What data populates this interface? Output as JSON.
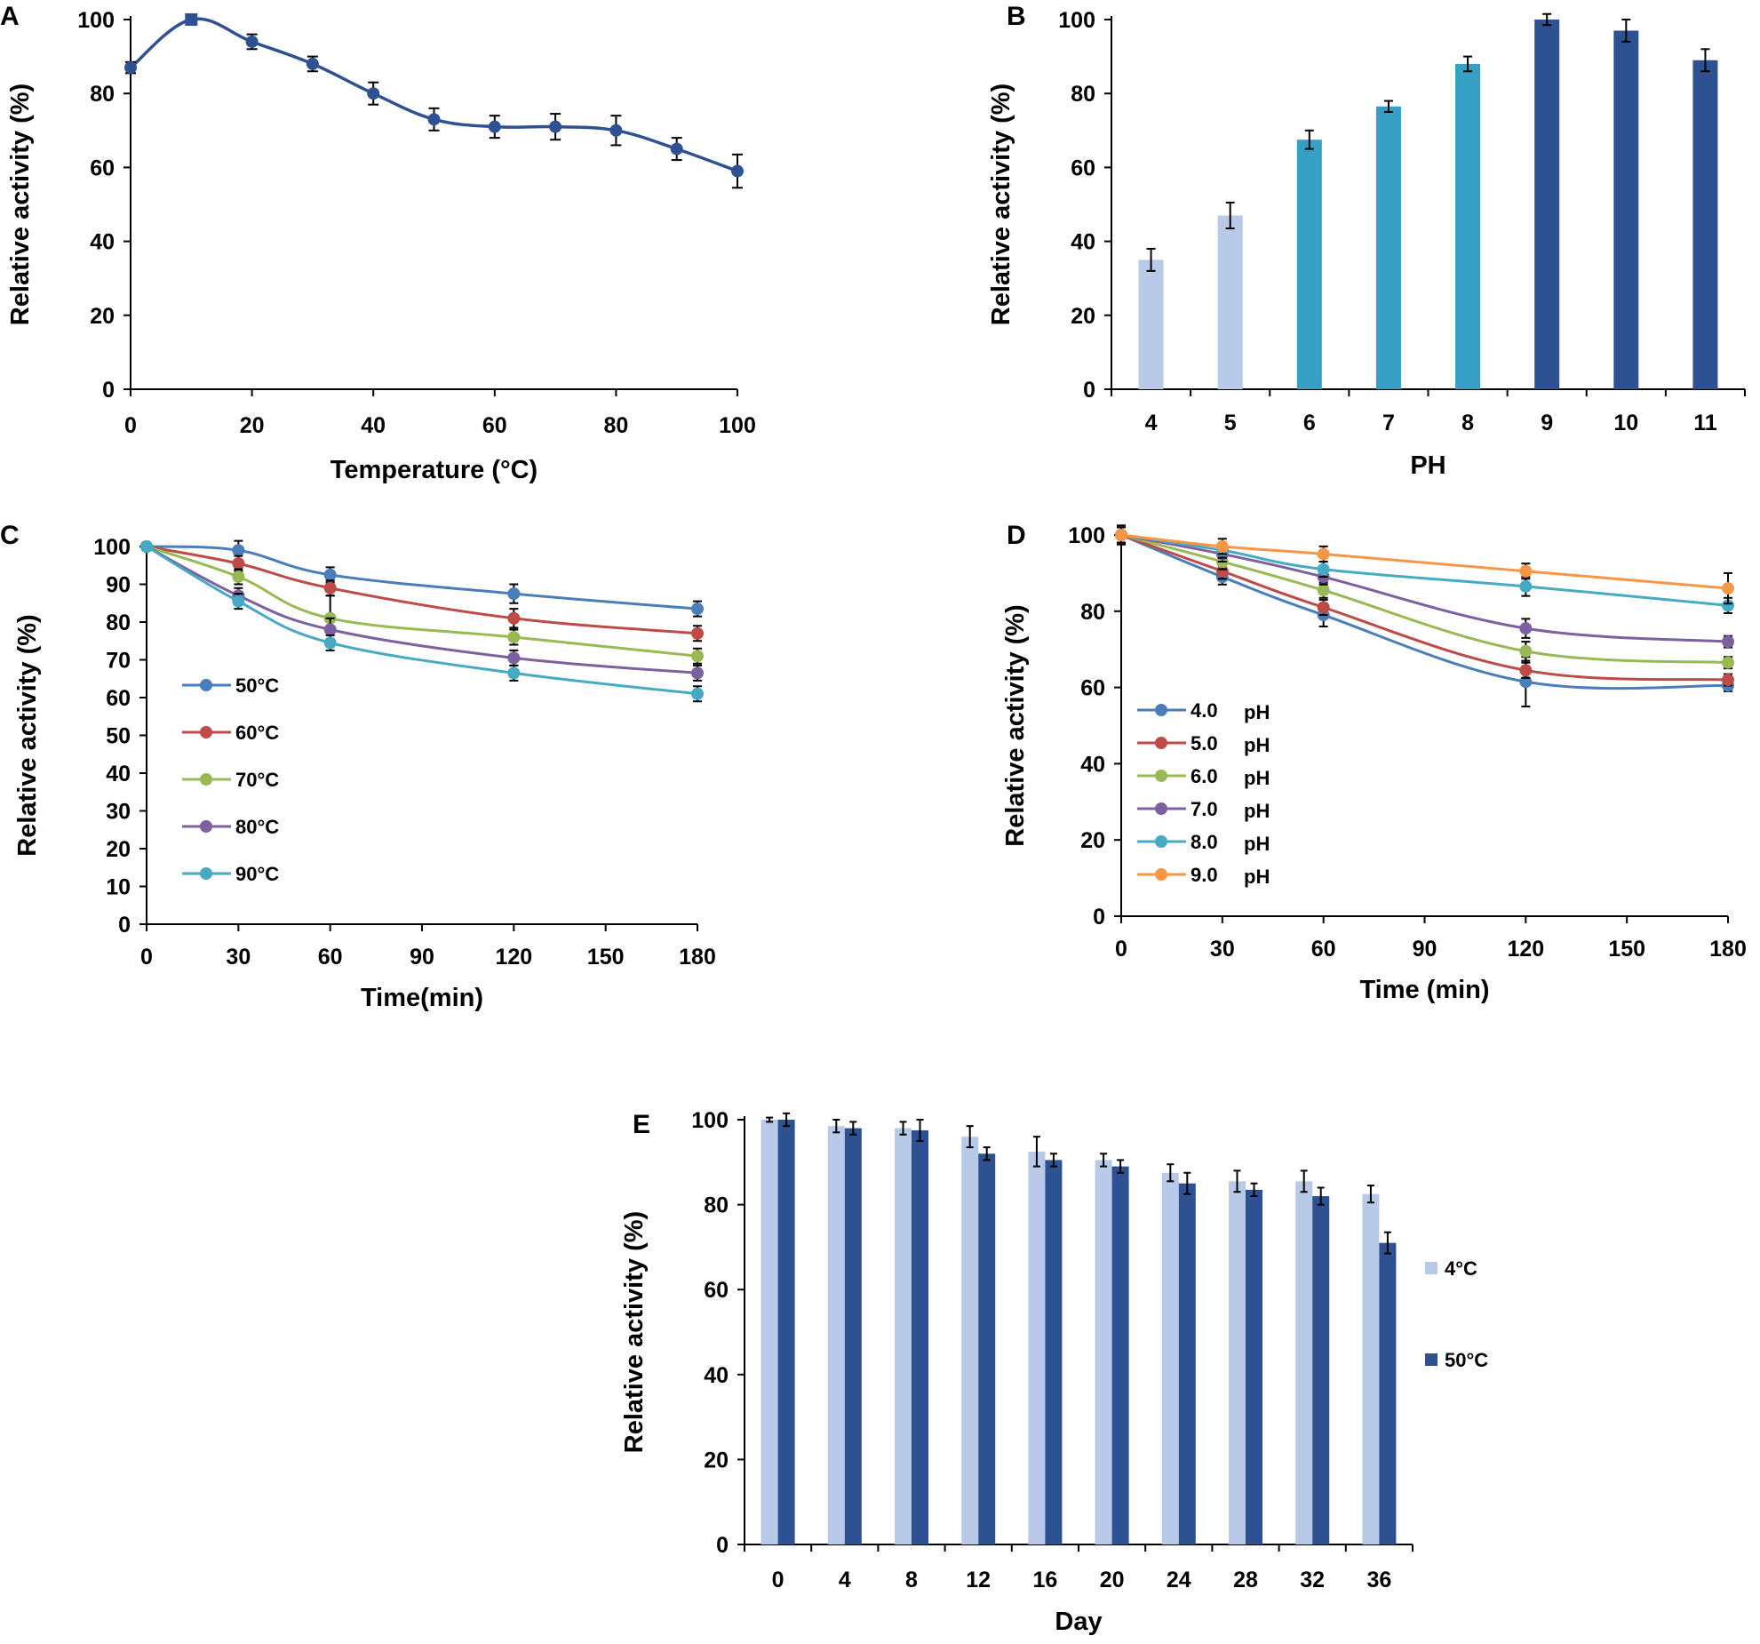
{
  "colors": {
    "light": "#b9c9e8",
    "mid": "#35a0c4",
    "dark": "#2e5191",
    "axis": "#000000"
  },
  "chart_data": [
    {
      "panel": "A",
      "type": "line",
      "title": "",
      "xlabel": "Temperature (°C)",
      "ylabel": "Relative activity (%)",
      "xlim": [
        0,
        100
      ],
      "ylim": [
        0,
        100
      ],
      "xticks": [
        "0",
        "20",
        "40",
        "60",
        "80",
        "100"
      ],
      "yticks": [
        "0",
        "20",
        "40",
        "60",
        "80",
        "100"
      ],
      "series": [
        {
          "name": "activity",
          "color": "#2e5191",
          "x": [
            0,
            10,
            20,
            30,
            40,
            50,
            60,
            70,
            80,
            90,
            100
          ],
          "y": [
            87,
            100,
            94,
            88,
            80,
            73,
            71,
            71,
            70,
            65,
            59
          ],
          "err": [
            1.5,
            1,
            2,
            2,
            3,
            3,
            3,
            3.5,
            4,
            3,
            4.5
          ]
        }
      ]
    },
    {
      "panel": "B",
      "type": "bar",
      "xlabel": "PH",
      "ylabel": "Relative activity (%)",
      "ylim": [
        0,
        100
      ],
      "yticks": [
        "0",
        "20",
        "40",
        "60",
        "80",
        "100"
      ],
      "categories": [
        "4",
        "5",
        "6",
        "7",
        "8",
        "9",
        "10",
        "11"
      ],
      "values": [
        35,
        47,
        67.5,
        76.5,
        88,
        100,
        97,
        89
      ],
      "err": [
        3,
        3.5,
        2.5,
        1.5,
        2,
        1.5,
        3,
        3
      ],
      "bar_colors": [
        "#b9c9e8",
        "#b9c9e8",
        "#35a0c4",
        "#35a0c4",
        "#35a0c4",
        "#2e5191",
        "#2e5191",
        "#2e5191"
      ]
    },
    {
      "panel": "C",
      "type": "line",
      "xlabel": "Time(min)",
      "ylabel": "Relative activity (%)",
      "xlim": [
        0,
        180
      ],
      "ylim": [
        0,
        100
      ],
      "xticks": [
        "0",
        "30",
        "60",
        "90",
        "120",
        "150",
        "180"
      ],
      "yticks": [
        "0",
        "10",
        "20",
        "30",
        "40",
        "50",
        "60",
        "70",
        "80",
        "90",
        "100"
      ],
      "x": [
        0,
        30,
        60,
        120,
        180
      ],
      "series": [
        {
          "name": "50°C",
          "color": "#4a7ebb",
          "values": [
            100,
            99,
            92.5,
            87.5,
            83.5
          ],
          "err": [
            1,
            2.5,
            2,
            2.5,
            2
          ]
        },
        {
          "name": "60°C",
          "color": "#be4b48",
          "values": [
            100,
            95.5,
            89,
            81,
            77
          ],
          "err": [
            1,
            2,
            2,
            2.5,
            2
          ]
        },
        {
          "name": "70°C",
          "color": "#98b954",
          "values": [
            100,
            92,
            81,
            76,
            71
          ],
          "err": [
            1,
            2,
            6,
            2,
            2
          ]
        },
        {
          "name": "80°C",
          "color": "#7d60a0",
          "values": [
            100,
            87,
            78,
            70.5,
            66.5
          ],
          "err": [
            1,
            2,
            3,
            2,
            2
          ]
        },
        {
          "name": "90°C",
          "color": "#46aac5",
          "values": [
            100,
            85.5,
            74.5,
            66.5,
            61
          ],
          "err": [
            1,
            2,
            2,
            2,
            2
          ]
        }
      ]
    },
    {
      "panel": "D",
      "type": "line",
      "xlabel": "Time (min)",
      "ylabel": "Relative activity (%)",
      "xlim": [
        0,
        180
      ],
      "ylim": [
        0,
        100
      ],
      "xticks": [
        "0",
        "30",
        "60",
        "90",
        "120",
        "150",
        "180"
      ],
      "yticks": [
        "0",
        "20",
        "40",
        "60",
        "80",
        "100"
      ],
      "x": [
        0,
        30,
        60,
        120,
        180
      ],
      "series": [
        {
          "name": "4.0",
          "unit": "pH",
          "color": "#4a7ebb",
          "values": [
            100,
            89,
            79,
            61.5,
            60.5
          ],
          "err": [
            2.5,
            2,
            3,
            6.5,
            1.5
          ]
        },
        {
          "name": "5.0",
          "unit": "pH",
          "color": "#be4b48",
          "values": [
            100,
            90.5,
            81,
            64.5,
            62
          ],
          "err": [
            2,
            2,
            2,
            2,
            1.5
          ]
        },
        {
          "name": "6.0",
          "unit": "pH",
          "color": "#98b954",
          "values": [
            100,
            93,
            85.5,
            69.5,
            66.5
          ],
          "err": [
            2,
            2,
            2,
            2.5,
            1.5
          ]
        },
        {
          "name": "7.0",
          "unit": "pH",
          "color": "#7d60a0",
          "values": [
            100,
            95,
            89,
            75.5,
            72
          ],
          "err": [
            2,
            2,
            2,
            2.5,
            1.5
          ]
        },
        {
          "name": "8.0",
          "unit": "pH",
          "color": "#46aac5",
          "values": [
            100,
            96,
            91,
            86.5,
            81.5
          ],
          "err": [
            2,
            2,
            2,
            2.5,
            2
          ]
        },
        {
          "name": "9.0",
          "unit": "pH",
          "color": "#f79646",
          "values": [
            100,
            97,
            95,
            90.5,
            86
          ],
          "err": [
            2,
            2,
            2,
            2,
            4
          ]
        }
      ]
    },
    {
      "panel": "E",
      "type": "bar",
      "xlabel": "Day",
      "ylabel": "Relative activity (%)",
      "ylim": [
        0,
        100
      ],
      "yticks": [
        "0",
        "20",
        "40",
        "60",
        "80",
        "100"
      ],
      "categories": [
        "0",
        "4",
        "8",
        "12",
        "16",
        "20",
        "24",
        "28",
        "32",
        "36"
      ],
      "series": [
        {
          "name": "4°C",
          "color": "#b9c9e8",
          "values": [
            100,
            98.5,
            98,
            96,
            92.5,
            90.5,
            87.5,
            85.5,
            85.5,
            82.5
          ],
          "err": [
            0.5,
            1.5,
            1.5,
            2.5,
            3.5,
            1.5,
            2,
            2.5,
            2.5,
            2
          ]
        },
        {
          "name": "50°C",
          "color": "#2e5191",
          "values": [
            100,
            98,
            97.5,
            92,
            90.5,
            89,
            85,
            83.5,
            82,
            71
          ],
          "err": [
            1.5,
            1.5,
            2.5,
            1.5,
            1.5,
            1.5,
            2.5,
            1.5,
            2,
            2.5
          ]
        }
      ]
    }
  ]
}
